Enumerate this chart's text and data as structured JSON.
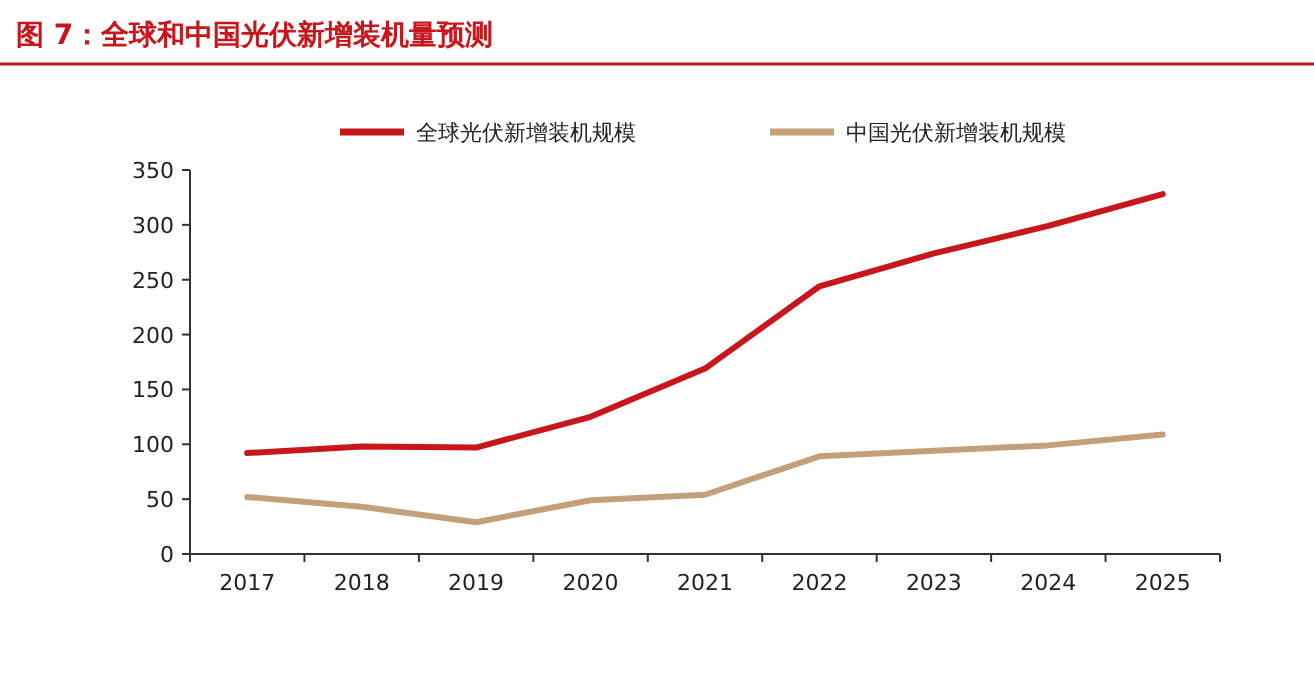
{
  "chart_data": {
    "type": "line",
    "title": "图 7：全球和中国光伏新增装机量预测",
    "categories": [
      "2017",
      "2018",
      "2019",
      "2020",
      "2021",
      "2022",
      "2023",
      "2024",
      "2025"
    ],
    "series": [
      {
        "name": "全球光伏新增装机规模",
        "color": "#c8161d",
        "values": [
          92,
          98,
          97,
          125,
          169,
          244,
          274,
          299,
          328
        ]
      },
      {
        "name": "中国光伏新增装机规模",
        "color": "#c4a07a",
        "values": [
          52,
          43,
          29,
          49,
          54,
          89,
          94,
          99,
          109
        ]
      }
    ],
    "ylim": [
      0,
      350
    ],
    "yticks": [
      0,
      50,
      100,
      150,
      200,
      250,
      300,
      350
    ],
    "grid": false,
    "legend": "top",
    "marker": "none",
    "line_style": "solid"
  }
}
